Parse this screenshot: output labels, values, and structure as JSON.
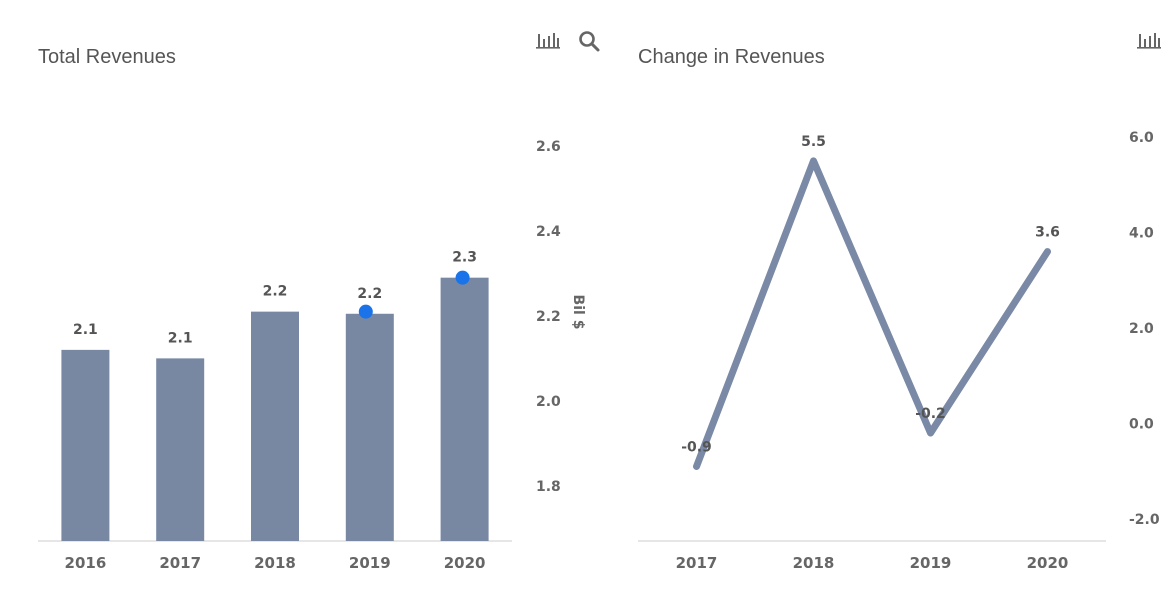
{
  "colors": {
    "bar": "#7888a3",
    "line": "#7a89a5",
    "marker": "#1a73e8",
    "axis": "#cccccc",
    "text": "#666666"
  },
  "icons": {
    "chart_type": "bar-chart-icon",
    "zoom": "search-icon"
  },
  "chart_data": [
    {
      "type": "bar",
      "title": "Total Revenues",
      "categories": [
        "2016",
        "2017",
        "2018",
        "2019",
        "2020"
      ],
      "values": [
        2.12,
        2.1,
        2.21,
        2.205,
        2.29
      ],
      "data_labels": [
        "2.1",
        "2.1",
        "2.2",
        "2.2",
        "2.3"
      ],
      "markers": [
        null,
        null,
        null,
        2.21,
        2.29
      ],
      "ylabel": "Bil $",
      "yticks": [
        "2.6",
        "2.4",
        "2.2",
        "2.0",
        "1.8"
      ],
      "ylim": [
        1.67,
        2.6
      ],
      "grid": false,
      "legend": "none"
    },
    {
      "type": "line",
      "title": "Change in Revenues",
      "categories": [
        "2017",
        "2018",
        "2019",
        "2020"
      ],
      "values": [
        -0.9,
        5.5,
        -0.2,
        3.6
      ],
      "data_labels": [
        "-0.9",
        "5.5",
        "-0.2",
        "3.6"
      ],
      "yticks": [
        "6.0",
        "4.0",
        "2.0",
        "0.0",
        "-2.0"
      ],
      "ylim": [
        -2.0,
        6.0
      ],
      "grid": false,
      "legend": "none"
    }
  ]
}
